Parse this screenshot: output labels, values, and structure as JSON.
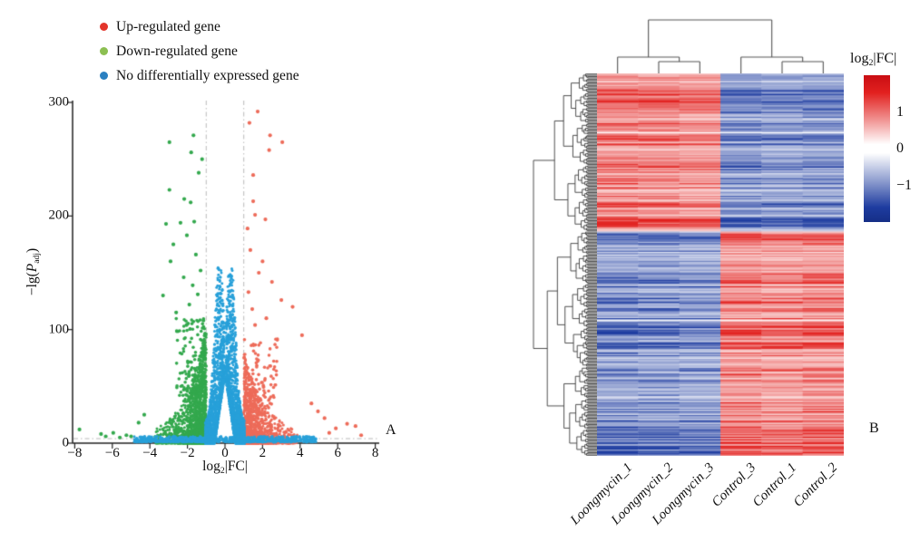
{
  "figure": {
    "panels": [
      {
        "label": "A"
      },
      {
        "label": "B"
      }
    ]
  },
  "volcano": {
    "legend": [
      {
        "label": "Up-regulated gene",
        "color": "#e3352b"
      },
      {
        "label": "Down-regulated gene",
        "color": "#8cbf52"
      },
      {
        "label": "No differentially expressed gene",
        "color": "#2a80c1"
      }
    ],
    "xlabel": {
      "base": "log",
      "sub": "2",
      "rest": "|FC|"
    },
    "ylabel": {
      "prefix": "−lg(",
      "sym": "P",
      "sub": "adj",
      "suffix": ")"
    },
    "x_tick_labels": [
      "−8",
      "−6",
      "−4",
      "−2",
      "0",
      "2",
      "4",
      "6",
      "8"
    ],
    "y_tick_labels": [
      "0",
      "100",
      "200",
      "300"
    ]
  },
  "heatmap": {
    "columns": [
      "Loongmycin_1",
      "Loongmycin_2",
      "Loongmycin_3",
      "Control_3",
      "Control_1",
      "Control_2"
    ],
    "legend_title": {
      "base": "log",
      "sub": "2",
      "rest": "|FC|"
    },
    "colorbar_tick_labels": [
      "1",
      "0",
      "−1"
    ]
  },
  "chart_data": [
    {
      "type": "scatter",
      "subtype": "volcano-plot",
      "xlabel": "log2|FC|",
      "ylabel": "-lg(P_adj)",
      "xlim": [
        -8,
        8
      ],
      "ylim": [
        0,
        300
      ],
      "x_ticks": [
        -8,
        -6,
        -4,
        -2,
        0,
        2,
        4,
        6,
        8
      ],
      "y_ticks": [
        0,
        100,
        200,
        300
      ],
      "grid": false,
      "thresholds": {
        "fc_lines": [
          -1,
          1
        ],
        "p_line": 4,
        "line_style": "gray dash-dot"
      },
      "series": [
        {
          "name": "Up-regulated gene",
          "color": "#ed6b59",
          "x_range": [
            1,
            7.3
          ],
          "dense_wedge_max_y": 74,
          "n_estimate": 1400,
          "notable_points": [
            [
              1.74,
              292
            ],
            [
              1.3,
              282
            ],
            [
              2.4,
              271
            ],
            [
              3.05,
              265
            ],
            [
              2.35,
              258
            ],
            [
              1.5,
              236
            ],
            [
              1.5,
              213
            ],
            [
              1.6,
              201
            ],
            [
              2.15,
              197
            ],
            [
              1.2,
              189
            ],
            [
              1.35,
              170
            ],
            [
              2.0,
              160
            ],
            [
              1.8,
              150
            ],
            [
              2.5,
              142
            ],
            [
              1.25,
              133
            ],
            [
              3.0,
              126
            ],
            [
              1.45,
              118
            ],
            [
              2.2,
              110
            ],
            [
              1.6,
              104
            ],
            [
              3.6,
              120
            ],
            [
              4.1,
              95
            ],
            [
              5.55,
              9
            ],
            [
              5.9,
              13
            ],
            [
              6.5,
              17
            ],
            [
              6.95,
              15
            ],
            [
              7.25,
              7
            ],
            [
              5.3,
              22
            ],
            [
              4.95,
              28
            ],
            [
              4.6,
              35
            ]
          ]
        },
        {
          "name": "Down-regulated gene",
          "color": "#33a84d",
          "x_range": [
            -7.8,
            -1
          ],
          "dense_wedge_max_y": 100,
          "n_estimate": 1900,
          "notable_points": [
            [
              -1.68,
              271
            ],
            [
              -2.96,
              265
            ],
            [
              -1.8,
              256
            ],
            [
              -1.22,
              250
            ],
            [
              -1.4,
              238
            ],
            [
              -2.96,
              223
            ],
            [
              -2.17,
              215
            ],
            [
              -1.83,
              212
            ],
            [
              -3.14,
              193
            ],
            [
              -2.37,
              194
            ],
            [
              -1.64,
              195
            ],
            [
              -2.03,
              183
            ],
            [
              -2.75,
              175
            ],
            [
              -1.55,
              166
            ],
            [
              -2.9,
              160
            ],
            [
              -1.3,
              152
            ],
            [
              -2.2,
              146
            ],
            [
              -1.72,
              139
            ],
            [
              -3.3,
              130
            ],
            [
              -1.9,
              122
            ],
            [
              -2.6,
              115
            ],
            [
              -1.15,
              108
            ],
            [
              -1.45,
              131
            ],
            [
              -2.05,
              104
            ],
            [
              -7.75,
              12
            ],
            [
              -6.6,
              8
            ],
            [
              -6.35,
              6
            ],
            [
              -5.95,
              9
            ],
            [
              -5.6,
              5
            ],
            [
              -5.25,
              7
            ],
            [
              -5.0,
              6
            ],
            [
              -4.6,
              18
            ],
            [
              -4.3,
              25
            ]
          ]
        },
        {
          "name": "No differentially expressed gene",
          "color": "#27a0d9",
          "x_range": [
            -1.05,
            1.05
          ],
          "dense_wedge_max_y": 150,
          "n_estimate": 3300,
          "note": "V-shaped dense cluster around 0 with empty notch below -lg(P)=60 at FC=0; plus thin band at -lg(P) 1-6 spanning |log2FC| up to 4.85"
        }
      ],
      "render": {
        "seed": 42,
        "ns_wedge_n": 2600,
        "ns_band_n": 780,
        "down_n": 1750,
        "down_mid_n": 115,
        "up_n": 1300,
        "up_mid_n": 90
      }
    },
    {
      "type": "heatmap",
      "columns": [
        "Loongmycin_1",
        "Loongmycin_2",
        "Loongmycin_3",
        "Control_3",
        "Control_1",
        "Control_2"
      ],
      "rows": "~1000 unlabeled genes, hierarchically clustered (left dendrogram)",
      "colorbar": {
        "title": "log2|FC|",
        "ticks": [
          1,
          0,
          -1
        ],
        "max_color": "#e2211f",
        "mid_color": "#ffffff",
        "min_color": "#1e3ca0"
      },
      "column_dendrogram": [
        [
          "Loongmycin_1",
          [
            "Loongmycin_2",
            "Loongmycin_3"
          ]
        ],
        [
          "Control_3",
          [
            "Control_1",
            "Control_2"
          ]
        ]
      ],
      "pattern": {
        "top_block": {
          "fraction": 0.41,
          "loongmycin": "up (red, log2FC ~ +1..+2)",
          "control": "down (blue, log2FC ~ -1..-2)"
        },
        "bottom_block": {
          "fraction": 0.59,
          "loongmycin": "down (blue)",
          "control": "up (red)"
        }
      },
      "render": {
        "seed": 7,
        "rows": 300,
        "boundary_row": 124,
        "col_intensity": [
          1.02,
          0.96,
          0.88,
          1.0,
          0.93,
          0.99
        ],
        "white_rows": [
          46,
          193
        ]
      }
    }
  ]
}
